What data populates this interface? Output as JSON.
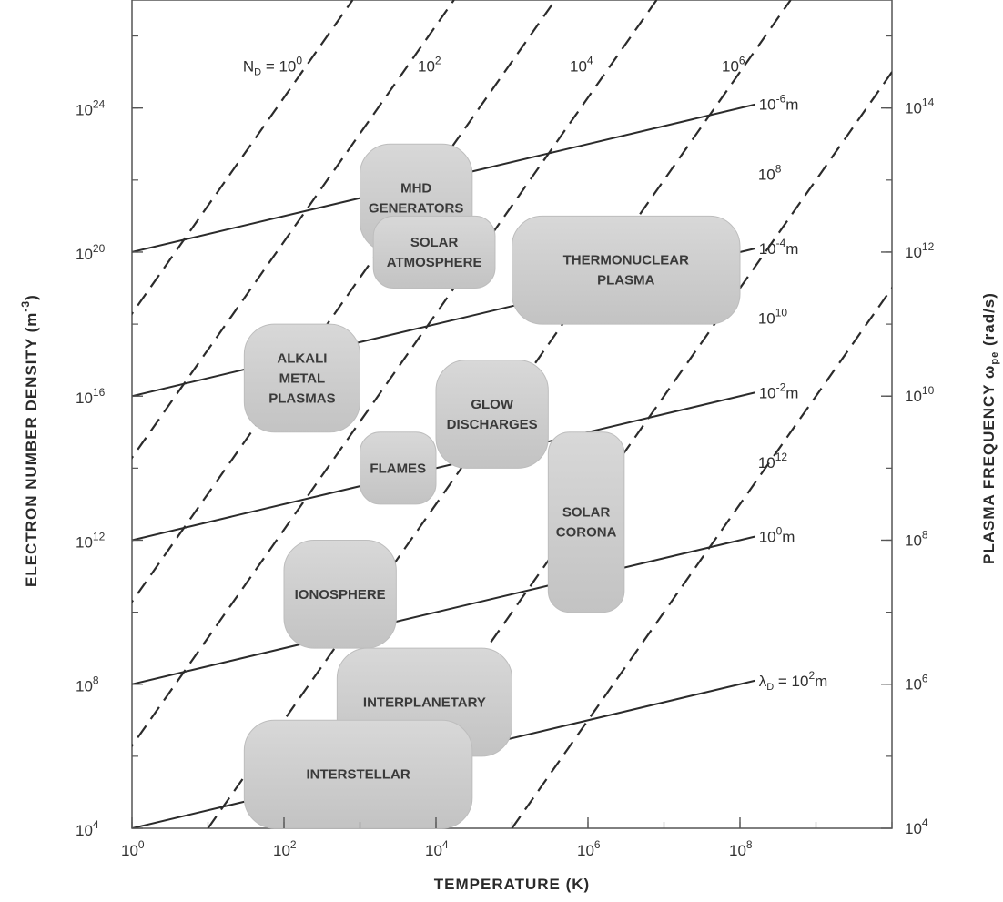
{
  "chart_data": {
    "type": "scatter",
    "description_axes": {
      "xlabel": "TEMPERATURE (K)",
      "ylabel": "ELECTRON NUMBER DENSITY (m",
      "ylabel_sup": "-3",
      "ylabel_close": ")",
      "y2label": "PLASMA FREQUENCY ω",
      "y2label_sub": "pe",
      "y2label_tail": "(rad/s)"
    },
    "x_scale": "log",
    "y_scale": "log",
    "xlim": [
      1,
      10000000000.0
    ],
    "ylim": [
      10000.0,
      1e+27
    ],
    "grid": false,
    "x_ticks": [
      {
        "value": 1,
        "base": "10",
        "exp": "0"
      },
      {
        "value": 100,
        "base": "10",
        "exp": "2"
      },
      {
        "value": 10000,
        "base": "10",
        "exp": "4"
      },
      {
        "value": 1000000,
        "base": "10",
        "exp": "6"
      },
      {
        "value": 100000000,
        "base": "10",
        "exp": "8"
      }
    ],
    "y_ticks": [
      {
        "value": 10000.0,
        "base": "10",
        "exp": "4"
      },
      {
        "value": 100000000.0,
        "base": "10",
        "exp": "8"
      },
      {
        "value": 1000000000000.0,
        "base": "10",
        "exp": "12"
      },
      {
        "value": 1e+16,
        "base": "10",
        "exp": "16"
      },
      {
        "value": 1e+20,
        "base": "10",
        "exp": "20"
      },
      {
        "value": 1e+24,
        "base": "10",
        "exp": "24"
      }
    ],
    "y2_ticks": [
      {
        "density": 10000.0,
        "base": "10",
        "exp": "4"
      },
      {
        "density": 100000000.0,
        "base": "10",
        "exp": "6"
      },
      {
        "density": 1000000000000.0,
        "base": "10",
        "exp": "8"
      },
      {
        "density": 1e+16,
        "base": "10",
        "exp": "10"
      },
      {
        "density": 1e+20,
        "base": "10",
        "exp": "12"
      },
      {
        "density": 1e+24,
        "base": "10",
        "exp": "14"
      }
    ],
    "debye_number_lines": [
      {
        "label_prefix": "N",
        "label_sub": "D",
        "label_mid": " = 10",
        "label_exp": "0",
        "x0": 0.8,
        "y_at_x0": 1e+18,
        "label_at": [
          50,
          1e+24
        ]
      },
      {
        "label_prefix": "",
        "label_sub": "",
        "label_mid": "10",
        "label_exp": "2",
        "x0": 0.8,
        "y_at_x0": 100000000000000.0,
        "label_at": [
          10000,
          1e+24
        ]
      },
      {
        "label_prefix": "",
        "label_sub": "",
        "label_mid": "10",
        "label_exp": "4",
        "x0": 0.8,
        "y_at_x0": 10000000000.0,
        "label_at": [
          1000000,
          1e+24
        ]
      },
      {
        "label_prefix": "",
        "label_sub": "",
        "label_mid": "10",
        "label_exp": "6",
        "x0": 0.8,
        "y_at_x0": 1000000.0,
        "label_at": [
          100000000,
          1e+24
        ]
      },
      {
        "label_prefix": "",
        "label_sub": "",
        "label_mid": "10",
        "label_exp": "8",
        "x0": 10,
        "y_at_x0": 10000.0,
        "label_at": [
          300000000,
          1e+21
        ]
      },
      {
        "label_prefix": "",
        "label_sub": "",
        "label_mid": "10",
        "label_exp": "10",
        "x0": 1000,
        "y_at_x0": 10000.0,
        "label_at": [
          300000000,
          1e+17
        ]
      },
      {
        "label_prefix": "",
        "label_sub": "",
        "label_mid": "10",
        "label_exp": "12",
        "x0": 100000,
        "y_at_x0": 10000.0,
        "label_at": [
          300000000,
          10000000000000.0
        ]
      }
    ],
    "debye_length_lines": [
      {
        "label_prefix": "",
        "label_sub": "",
        "label_mid": "10",
        "label_exp": "-6",
        "label_unit": "m",
        "x0": 1,
        "y_at_x0": 1e+20
      },
      {
        "label_prefix": "",
        "label_sub": "",
        "label_mid": "10",
        "label_exp": "-4",
        "label_unit": "m",
        "x0": 1,
        "y_at_x0": 1e+16
      },
      {
        "label_prefix": "",
        "label_sub": "",
        "label_mid": "10",
        "label_exp": "-2",
        "label_unit": "m",
        "x0": 1,
        "y_at_x0": 1000000000000.0
      },
      {
        "label_prefix": "",
        "label_sub": "",
        "label_mid": "10",
        "label_exp": "0",
        "label_unit": "m",
        "x0": 1,
        "y_at_x0": 100000000.0
      },
      {
        "label_prefix": "λ",
        "label_sub": "D",
        "label_mid": " = 10",
        "label_exp": "2",
        "label_unit": "m",
        "x0": 1,
        "y_at_x0": 10000.0
      }
    ],
    "regions": [
      {
        "lines": [
          "MHD",
          "GENERATORS"
        ],
        "x_range": [
          1000,
          30000
        ],
        "y_range": [
          1e+20,
          1e+23
        ]
      },
      {
        "lines": [
          "SOLAR",
          "ATMOSPHERE"
        ],
        "x_range": [
          1500,
          60000
        ],
        "y_range": [
          1e+19,
          1e+21
        ]
      },
      {
        "lines": [
          "THERMONUCLEAR",
          "PLASMA"
        ],
        "x_range": [
          100000,
          100000000
        ],
        "y_range": [
          1e+18,
          1e+21
        ]
      },
      {
        "lines": [
          "ALKALI",
          "METAL",
          "PLASMAS"
        ],
        "x_range": [
          30,
          1000
        ],
        "y_range": [
          1000000000000000.0,
          1e+18
        ]
      },
      {
        "lines": [
          "GLOW",
          "DISCHARGES"
        ],
        "x_range": [
          10000,
          300000
        ],
        "y_range": [
          100000000000000.0,
          1e+17
        ]
      },
      {
        "lines": [
          "FLAMES"
        ],
        "x_range": [
          1000,
          10000
        ],
        "y_range": [
          10000000000000.0,
          1000000000000000.0
        ]
      },
      {
        "lines": [
          "SOLAR",
          "CORONA"
        ],
        "x_range": [
          300000,
          3000000
        ],
        "y_range": [
          10000000000.0,
          1000000000000000.0
        ]
      },
      {
        "lines": [
          "IONOSPHERE"
        ],
        "x_range": [
          100,
          3000
        ],
        "y_range": [
          1000000000.0,
          1000000000000.0
        ]
      },
      {
        "lines": [
          "INTERPLANETARY"
        ],
        "x_range": [
          500,
          100000
        ],
        "y_range": [
          1000000.0,
          1000000000.0
        ]
      },
      {
        "lines": [
          "INTERSTELLAR"
        ],
        "x_range": [
          30,
          30000
        ],
        "y_range": [
          10000.0,
          10000000.0
        ]
      }
    ]
  }
}
